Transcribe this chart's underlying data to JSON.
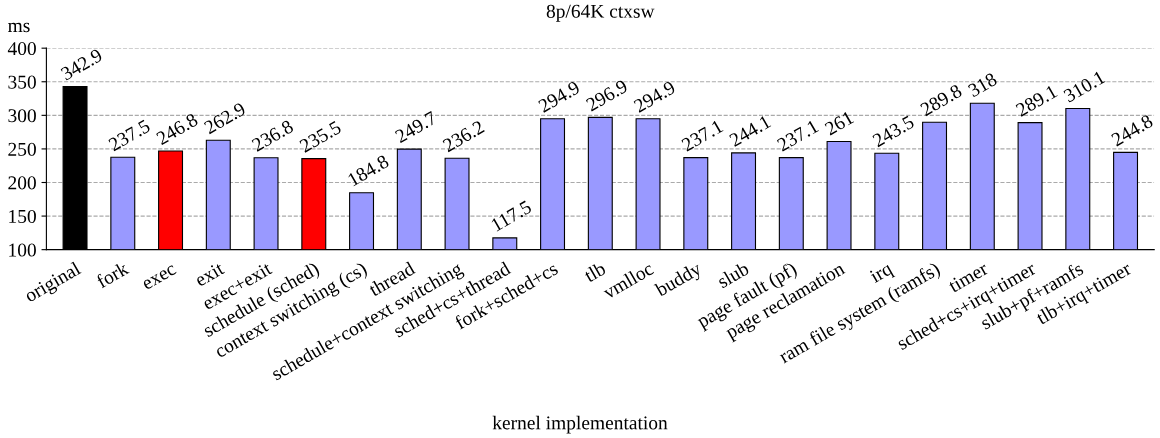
{
  "chart_data": {
    "type": "bar",
    "title": "8p/64K ctxsw",
    "xlabel": "kernel implementation",
    "ylabel": "ms",
    "categories": [
      "original",
      "fork",
      "exec",
      "exit",
      "exec+exit",
      "schedule (sched)",
      "context switching (cs)",
      "thread",
      "schedule+context switching",
      "sched+cs+thread",
      "fork+sched+cs",
      "tlb",
      "vmlloc",
      "buddy",
      "slub",
      "page fault (pf)",
      "page reclamation",
      "irq",
      "ram file system (ramfs)",
      "timer",
      "sched+cs+irq+timer",
      "slub+pf+ramfs",
      "tlb+irq+timer"
    ],
    "values": [
      342.9,
      237.5,
      246.8,
      262.9,
      236.8,
      235.5,
      184.8,
      249.7,
      236.2,
      117.5,
      294.9,
      296.9,
      294.9,
      237.1,
      244.1,
      237.1,
      261,
      243.5,
      289.8,
      318,
      289.1,
      310.1,
      244.8
    ],
    "colors": [
      "#000000",
      "#9999ff",
      "#ff0000",
      "#9999ff",
      "#9999ff",
      "#ff0000",
      "#9999ff",
      "#9999ff",
      "#9999ff",
      "#9999ff",
      "#9999ff",
      "#9999ff",
      "#9999ff",
      "#9999ff",
      "#9999ff",
      "#9999ff",
      "#9999ff",
      "#9999ff",
      "#9999ff",
      "#9999ff",
      "#9999ff",
      "#9999ff",
      "#9999ff"
    ],
    "ylim": [
      100,
      400
    ],
    "yticks": [
      100,
      150,
      200,
      250,
      300,
      350,
      400
    ],
    "grid": "y",
    "data_labels": true
  }
}
